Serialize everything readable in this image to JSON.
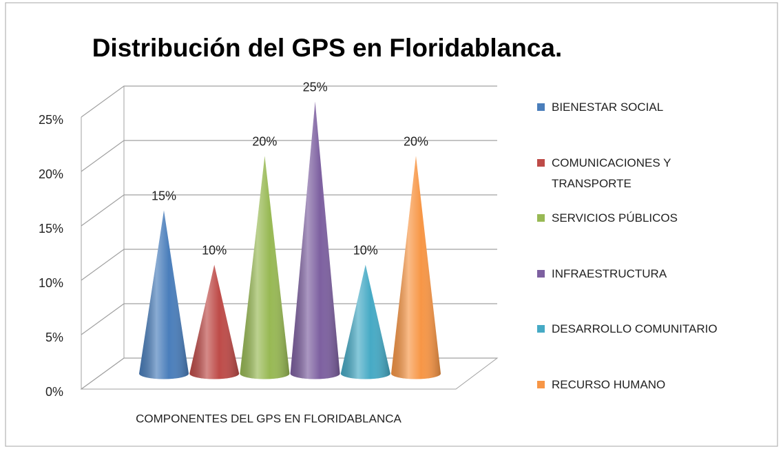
{
  "chart_data": {
    "type": "cone3d",
    "title": "Distribución del GPS en Floridablanca.",
    "x_label": "COMPONENTES DEL GPS EN FLORIDABLANCA",
    "series": [
      {
        "name": "BIENESTAR SOCIAL",
        "color": "#4a7ebb",
        "values": [
          15
        ],
        "value_labels": [
          "15%"
        ]
      },
      {
        "name": "COMUNICACIONES Y TRANSPORTE",
        "color": "#be4b48",
        "values": [
          10
        ],
        "value_labels": [
          "10%"
        ]
      },
      {
        "name": "SERVICIOS PÚBLICOS",
        "color": "#98b954",
        "values": [
          20
        ],
        "value_labels": [
          "20%"
        ]
      },
      {
        "name": "INFRAESTRUCTURA",
        "color": "#7d60a0",
        "values": [
          25
        ],
        "value_labels": [
          "25%"
        ]
      },
      {
        "name": "DESARROLLO COMUNITARIO",
        "color": "#46aac5",
        "values": [
          10
        ],
        "value_labels": [
          "10%"
        ]
      },
      {
        "name": "RECURSO HUMANO",
        "color": "#f79646",
        "values": [
          20
        ],
        "value_labels": [
          "20%"
        ]
      }
    ],
    "ylim": [
      0,
      25
    ],
    "yticks": [
      {
        "value": 0,
        "label": "0%"
      },
      {
        "value": 5,
        "label": "5%"
      },
      {
        "value": 10,
        "label": "10%"
      },
      {
        "value": 15,
        "label": "15%"
      },
      {
        "value": 20,
        "label": "20%"
      },
      {
        "value": 25,
        "label": "25%"
      }
    ],
    "grid": true,
    "legend": "right"
  }
}
